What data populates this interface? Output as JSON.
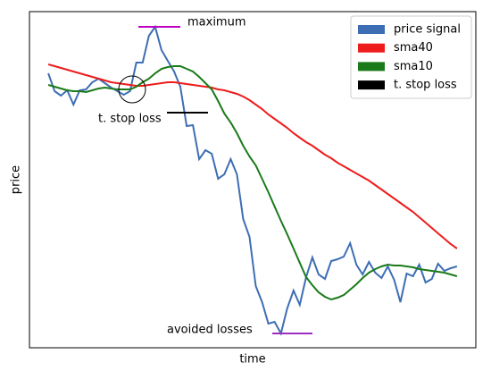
{
  "chart_data": {
    "type": "line",
    "xlabel": "time",
    "ylabel": "price",
    "x": [
      0,
      1,
      2,
      3,
      4,
      5,
      6,
      7,
      8,
      9,
      10,
      11,
      12,
      13,
      14,
      15,
      16,
      17,
      18,
      19,
      20,
      21,
      22,
      23,
      24,
      25,
      26,
      27,
      28,
      29,
      30,
      31,
      32,
      33,
      34,
      35,
      36,
      37,
      38,
      39,
      40,
      41,
      42,
      43,
      44,
      45,
      46,
      47,
      48,
      49,
      50,
      51,
      52,
      53,
      54,
      55,
      56,
      57,
      58,
      59,
      60,
      61,
      62,
      63,
      64,
      65
    ],
    "xlim": [
      -3,
      68
    ],
    "ylim": [
      0,
      376
    ],
    "legend_position": "upper right",
    "series": [
      {
        "name": "price signal",
        "color": "#3d6eb4",
        "values": [
          307,
          287,
          282,
          288,
          272,
          288,
          289,
          297,
          301,
          296,
          291,
          287,
          283,
          287,
          319,
          319,
          349,
          359,
          333,
          321,
          309,
          292,
          248,
          249,
          211,
          221,
          217,
          189,
          194,
          211,
          194,
          144,
          124,
          69,
          51,
          27,
          29,
          16,
          44,
          64,
          48,
          79,
          101,
          82,
          77,
          97,
          99,
          102,
          117,
          93,
          82,
          96,
          84,
          78,
          91,
          76,
          51,
          83,
          80,
          93,
          73,
          77,
          94,
          86,
          89,
          91
        ]
      },
      {
        "name": "sma40",
        "color": "#ee1c1c",
        "values": [
          317,
          315,
          313,
          311,
          309,
          307,
          305,
          303,
          301,
          299,
          297,
          296,
          295,
          294,
          293,
          293,
          294,
          295,
          296,
          297,
          297,
          296,
          295,
          294,
          293,
          292,
          291,
          289,
          288,
          286,
          284,
          281,
          277,
          272,
          267,
          261,
          256,
          251,
          246,
          240,
          235,
          230,
          226,
          221,
          216,
          212,
          207,
          203,
          199,
          195,
          191,
          187,
          182,
          177,
          172,
          167,
          162,
          157,
          152,
          146,
          140,
          134,
          128,
          122,
          116,
          111
        ]
      },
      {
        "name": "sma10",
        "color": "#1a7a1a",
        "values": [
          294,
          292,
          290,
          288,
          287,
          287,
          286,
          288,
          290,
          291,
          290,
          289,
          289,
          289,
          292,
          297,
          301,
          307,
          312,
          314,
          315,
          315,
          312,
          309,
          303,
          296,
          289,
          276,
          262,
          252,
          240,
          226,
          214,
          204,
          189,
          174,
          158,
          142,
          127,
          111,
          95,
          79,
          70,
          62,
          57,
          54,
          56,
          59,
          65,
          71,
          78,
          84,
          88,
          91,
          93,
          92,
          92,
          91,
          90,
          88,
          87,
          86,
          85,
          84,
          82,
          80
        ]
      }
    ],
    "legend_extra": {
      "name": "t. stop loss",
      "color": "#000000"
    },
    "annotations": [
      {
        "text": "maximum",
        "color": "#c000c0"
      },
      {
        "text": "t. stop loss",
        "color": "#000000"
      },
      {
        "text": "avoided losses",
        "color": "#9b30c0"
      }
    ]
  }
}
